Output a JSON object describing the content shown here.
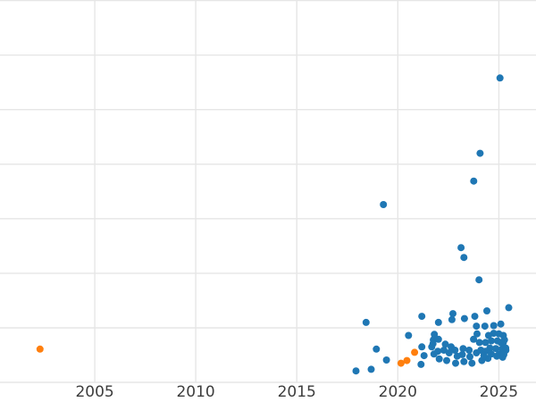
{
  "chart_data": {
    "type": "scatter",
    "title": "",
    "xlabel": "",
    "ylabel": "",
    "x_tick_labels": [
      "2005",
      "2010",
      "2015",
      "2020",
      "2025"
    ],
    "x_tick_values": [
      2005,
      2010,
      2015,
      2020,
      2025
    ],
    "y_gridline_values": [
      0,
      1,
      2,
      3,
      4,
      5,
      6,
      7
    ],
    "y_axis_labels_visible": false,
    "y_units_note": "y-axis tick labels are cropped out of view; y values given in gridline units (0 at bottom axis line, 1 per gridline)",
    "axis": {
      "xlim": [
        2000.31,
        2026.84
      ],
      "ylim": [
        -0.36,
        7.01
      ],
      "grid": true,
      "legend": "none"
    },
    "point_radius": 4,
    "colors": {
      "blue": "#1f77b4",
      "orange": "#ff7f0e",
      "gridline": "#e6e6e6",
      "background": "#ffffff",
      "tick_label": "#3d3d3d"
    },
    "series": [
      {
        "name": "blue",
        "color_key": "blue",
        "points": [
          [
            2025.06,
            5.58
          ],
          [
            2024.07,
            4.2
          ],
          [
            2023.76,
            3.69
          ],
          [
            2019.29,
            3.26
          ],
          [
            2023.13,
            2.47
          ],
          [
            2023.27,
            2.29
          ],
          [
            2024.02,
            1.88
          ],
          [
            2018.43,
            1.1
          ],
          [
            2017.93,
            0.21
          ],
          [
            2018.68,
            0.24
          ],
          [
            2018.94,
            0.61
          ],
          [
            2019.44,
            0.41
          ],
          [
            2020.53,
            0.86
          ],
          [
            2021.19,
            1.21
          ],
          [
            2021.19,
            0.65
          ],
          [
            2021.3,
            0.49
          ],
          [
            2021.15,
            0.33
          ],
          [
            2022.01,
            1.1
          ],
          [
            2022.73,
            1.26
          ],
          [
            2022.68,
            1.15
          ],
          [
            2023.3,
            1.17
          ],
          [
            2023.81,
            1.21
          ],
          [
            2024.41,
            1.31
          ],
          [
            2025.49,
            1.37
          ],
          [
            2025.1,
            1.07
          ],
          [
            2024.75,
            1.04
          ],
          [
            2024.31,
            1.03
          ],
          [
            2023.89,
            1.03
          ],
          [
            2021.76,
            0.78
          ],
          [
            2022.01,
            0.79
          ],
          [
            2021.68,
            0.65
          ],
          [
            2021.98,
            0.57
          ],
          [
            2022.35,
            0.7
          ],
          [
            2022.28,
            0.59
          ],
          [
            2022.64,
            0.65
          ],
          [
            2022.54,
            0.54
          ],
          [
            2022.83,
            0.59
          ],
          [
            2022.94,
            0.48
          ],
          [
            2023.23,
            0.62
          ],
          [
            2023.19,
            0.51
          ],
          [
            2023.53,
            0.59
          ],
          [
            2023.57,
            0.47
          ],
          [
            2023.89,
            0.54
          ],
          [
            2022.05,
            0.43
          ],
          [
            2022.42,
            0.4
          ],
          [
            2022.86,
            0.35
          ],
          [
            2023.27,
            0.38
          ],
          [
            2023.67,
            0.35
          ],
          [
            2024.04,
            0.73
          ],
          [
            2024.11,
            0.59
          ],
          [
            2024.16,
            0.4
          ],
          [
            2023.92,
            0.89
          ],
          [
            2023.75,
            0.79
          ],
          [
            2021.74,
            0.71
          ],
          [
            2021.79,
            0.52
          ],
          [
            2021.81,
            0.88
          ],
          [
            2024.75,
            0.9
          ],
          [
            2024.49,
            0.86
          ],
          [
            2025.0,
            0.89
          ],
          [
            2025.22,
            0.86
          ],
          [
            2024.63,
            0.76
          ],
          [
            2024.34,
            0.73
          ],
          [
            2024.93,
            0.76
          ],
          [
            2025.22,
            0.73
          ],
          [
            2024.56,
            0.63
          ],
          [
            2024.85,
            0.62
          ],
          [
            2025.15,
            0.61
          ],
          [
            2024.34,
            0.57
          ],
          [
            2024.63,
            0.52
          ],
          [
            2025.0,
            0.51
          ],
          [
            2025.34,
            0.63
          ],
          [
            2024.46,
            0.44
          ],
          [
            2025.19,
            0.46
          ],
          [
            2025.28,
            0.78
          ],
          [
            2025.1,
            0.73
          ],
          [
            2025.35,
            0.59
          ],
          [
            2025.25,
            0.51
          ],
          [
            2024.9,
            0.48
          ],
          [
            2024.26,
            0.49
          ]
        ]
      },
      {
        "name": "orange",
        "color_key": "orange",
        "points": [
          [
            2002.29,
            0.61
          ],
          [
            2020.16,
            0.35
          ],
          [
            2020.45,
            0.4
          ],
          [
            2020.83,
            0.55
          ]
        ]
      }
    ]
  }
}
